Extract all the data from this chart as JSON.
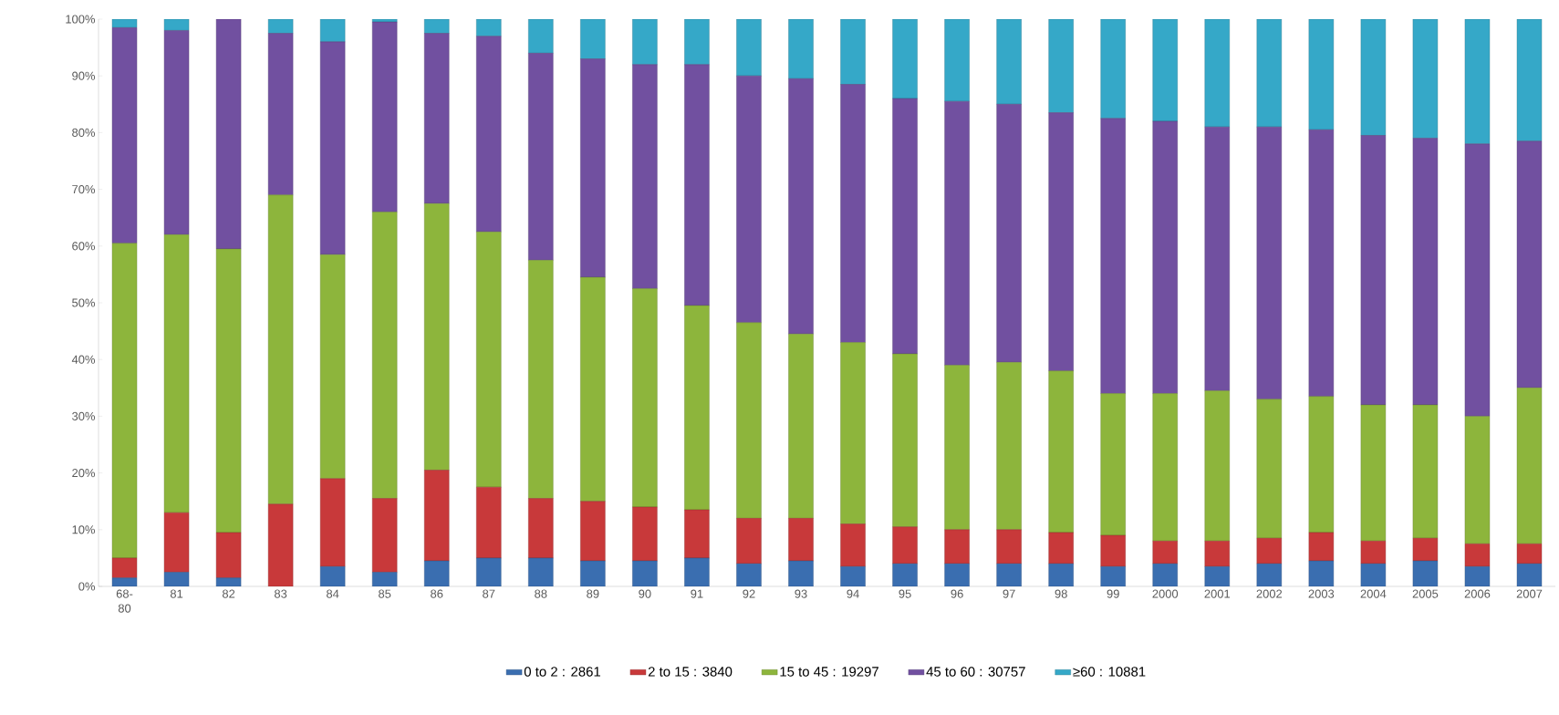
{
  "chart_data": {
    "type": "bar",
    "stacked": true,
    "categories": [
      "68-80",
      "81",
      "82",
      "83",
      "84",
      "85",
      "86",
      "87",
      "88",
      "89",
      "90",
      "91",
      "92",
      "93",
      "94",
      "95",
      "96",
      "97",
      "98",
      "99",
      "2000",
      "2001",
      "2002",
      "2003",
      "2004",
      "2005",
      "2006",
      "2007"
    ],
    "series": [
      {
        "name": "0 to 2 : 2861",
        "color": "#3a6eb0",
        "values": [
          1.5,
          2.5,
          1.5,
          0,
          3.5,
          2.5,
          4.5,
          5,
          5,
          4.5,
          4.5,
          5,
          4,
          4.5,
          3.5,
          4,
          4,
          4,
          4,
          3.5,
          4,
          3.5,
          4,
          4.5,
          4,
          4.5,
          3.5,
          4
        ]
      },
      {
        "name": "2 to 15 : 3840",
        "color": "#c8393a",
        "values": [
          3.5,
          10.5,
          8,
          14.5,
          15.5,
          13,
          16,
          12.5,
          10.5,
          10.5,
          9.5,
          8.5,
          8,
          7.5,
          7.5,
          6.5,
          6,
          6,
          5.5,
          5.5,
          4,
          4.5,
          4.5,
          5,
          4,
          4,
          4,
          3.5
        ]
      },
      {
        "name": "15 to 45 : 19297",
        "color": "#8db53c",
        "values": [
          55.5,
          49,
          50,
          54.5,
          39.5,
          50.5,
          47,
          45,
          42,
          39.5,
          38.5,
          36,
          34.5,
          32.5,
          32,
          30.5,
          29,
          29.5,
          28.5,
          25,
          26,
          26.5,
          24.5,
          24,
          24,
          23.5,
          22.5,
          27.5
        ]
      },
      {
        "name": "45 to 60 : 30757",
        "color": "#7150a0",
        "values": [
          38,
          36,
          40.5,
          28.5,
          37.5,
          33.5,
          30,
          34.5,
          36.5,
          38.5,
          39.5,
          42.5,
          43.5,
          45,
          45.5,
          45,
          46.5,
          45.5,
          45.5,
          48.5,
          48,
          46.5,
          48,
          47,
          47.5,
          47,
          48,
          43.5
        ]
      },
      {
        "name": "≥60 : 10881",
        "color": "#35a8c8",
        "values": [
          1.5,
          2,
          0,
          2.5,
          4,
          0.5,
          2.5,
          3,
          6,
          7,
          8,
          8,
          10,
          10.5,
          11.5,
          14,
          14.5,
          15,
          16.5,
          17.5,
          18,
          19,
          19,
          19.5,
          20.5,
          21,
          22,
          21.5
        ]
      }
    ],
    "ylim": [
      0,
      100
    ],
    "yticks": [
      {
        "value": 0,
        "label": "0%"
      },
      {
        "value": 10,
        "label": "10%"
      },
      {
        "value": 20,
        "label": "20%"
      },
      {
        "value": 30,
        "label": "30%"
      },
      {
        "value": 40,
        "label": "40%"
      },
      {
        "value": 50,
        "label": "50%"
      },
      {
        "value": 60,
        "label": "60%"
      },
      {
        "value": 70,
        "label": "70%"
      },
      {
        "value": 80,
        "label": "80%"
      },
      {
        "value": 90,
        "label": "90%"
      },
      {
        "value": 100,
        "label": "100%"
      }
    ],
    "legend": "bottom"
  }
}
